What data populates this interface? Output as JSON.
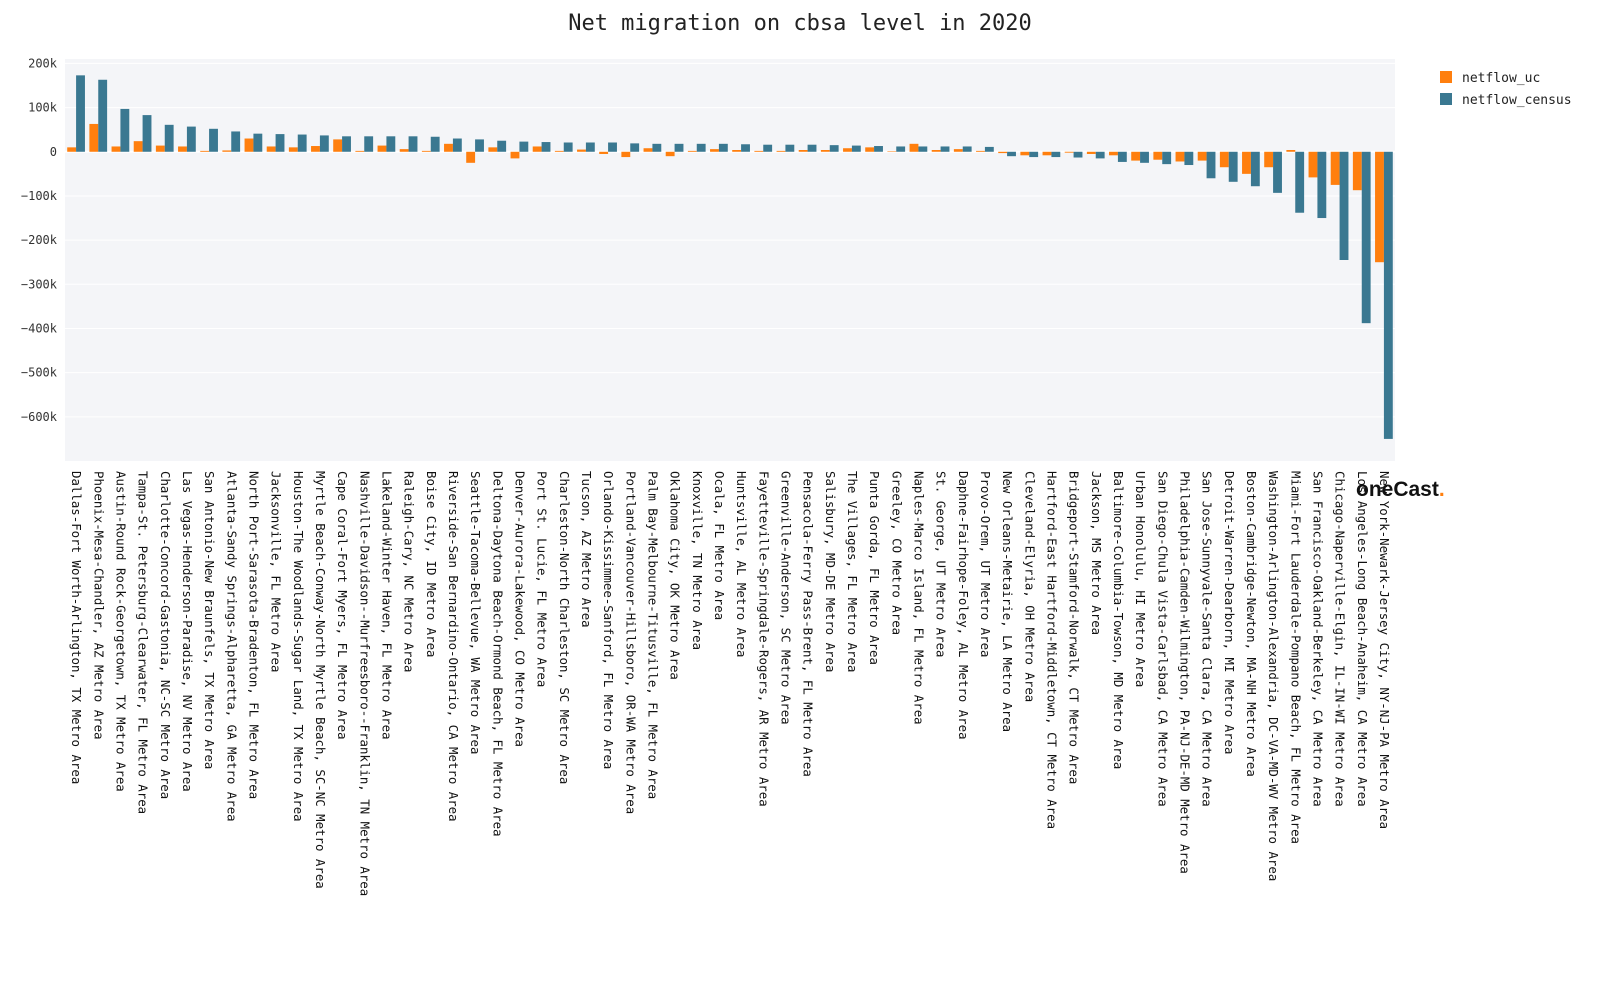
{
  "chart_data": {
    "type": "bar",
    "title": "Net migration on cbsa level in 2020",
    "xlabel": "",
    "ylabel": "",
    "ylim": [
      -700000,
      210000
    ],
    "yticks": [
      200000,
      100000,
      0,
      -100000,
      -200000,
      -300000,
      -400000,
      -500000,
      -600000
    ],
    "yticklabels": [
      "200k",
      "100k",
      "0",
      "−100k",
      "−200k",
      "−300k",
      "−400k",
      "−500k",
      "−600k"
    ],
    "grid": true,
    "legend_position": "top-right",
    "categories": [
      "Dallas-Fort Worth-Arlington, TX Metro Area",
      "Phoenix-Mesa-Chandler, AZ Metro Area",
      "Austin-Round Rock-Georgetown, TX Metro Area",
      "Tampa-St. Petersburg-Clearwater, FL Metro Area",
      "Charlotte-Concord-Gastonia, NC-SC Metro Area",
      "Las Vegas-Henderson-Paradise, NV Metro Area",
      "San Antonio-New Braunfels, TX Metro Area",
      "Atlanta-Sandy Springs-Alpharetta, GA Metro Area",
      "North Port-Sarasota-Bradenton, FL Metro Area",
      "Jacksonville, FL Metro Area",
      "Houston-The Woodlands-Sugar Land, TX Metro Area",
      "Myrtle Beach-Conway-North Myrtle Beach, SC-NC Metro Area",
      "Cape Coral-Fort Myers, FL Metro Area",
      "Nashville-Davidson--Murfreesboro--Franklin, TN Metro Area",
      "Lakeland-Winter Haven, FL Metro Area",
      "Raleigh-Cary, NC Metro Area",
      "Boise City, ID Metro Area",
      "Riverside-San Bernardino-Ontario, CA Metro Area",
      "Seattle-Tacoma-Bellevue, WA Metro Area",
      "Deltona-Daytona Beach-Ormond Beach, FL Metro Area",
      "Denver-Aurora-Lakewood, CO Metro Area",
      "Port St. Lucie, FL Metro Area",
      "Charleston-North Charleston, SC Metro Area",
      "Tucson, AZ Metro Area",
      "Orlando-Kissimmee-Sanford, FL Metro Area",
      "Portland-Vancouver-Hillsboro, OR-WA Metro Area",
      "Palm Bay-Melbourne-Titusville, FL Metro Area",
      "Oklahoma City, OK Metro Area",
      "Knoxville, TN Metro Area",
      "Ocala, FL Metro Area",
      "Huntsville, AL Metro Area",
      "Fayetteville-Springdale-Rogers, AR Metro Area",
      "Greenville-Anderson, SC Metro Area",
      "Pensacola-Ferry Pass-Brent, FL Metro Area",
      "Salisbury, MD-DE Metro Area",
      "The Villages, FL Metro Area",
      "Punta Gorda, FL Metro Area",
      "Greeley, CO Metro Area",
      "Naples-Marco Island, FL Metro Area",
      "St. George, UT Metro Area",
      "Daphne-Fairhope-Foley, AL Metro Area",
      "Provo-Orem, UT Metro Area",
      "New Orleans-Metairie, LA Metro Area",
      "Cleveland-Elyria, OH Metro Area",
      "Hartford-East Hartford-Middletown, CT Metro Area",
      "Bridgeport-Stamford-Norwalk, CT Metro Area",
      "Jackson, MS Metro Area",
      "Baltimore-Columbia-Towson, MD Metro Area",
      "Urban Honolulu, HI Metro Area",
      "San Diego-Chula Vista-Carlsbad, CA Metro Area",
      "Philadelphia-Camden-Wilmington, PA-NJ-DE-MD Metro Area",
      "San Jose-Sunnyvale-Santa Clara, CA Metro Area",
      "Detroit-Warren-Dearborn, MI Metro Area",
      "Boston-Cambridge-Newton, MA-NH Metro Area",
      "Washington-Arlington-Alexandria, DC-VA-MD-WV Metro Area",
      "Miami-Fort Lauderdale-Pompano Beach, FL Metro Area",
      "San Francisco-Oakland-Berkeley, CA Metro Area",
      "Chicago-Naperville-Elgin, IL-IN-WI Metro Area",
      "Los Angeles-Long Beach-Anaheim, CA Metro Area",
      "New York-Newark-Jersey City, NY-NJ-PA Metro Area"
    ],
    "series": [
      {
        "name": "netflow_uc",
        "color": "#ff7f0e",
        "values": [
          10000,
          63000,
          12000,
          24000,
          14000,
          12000,
          2000,
          3000,
          30000,
          12000,
          10000,
          13000,
          28000,
          2000,
          14000,
          6000,
          2000,
          18000,
          -25000,
          10000,
          -15000,
          12000,
          2000,
          5000,
          -5000,
          -12000,
          8000,
          -10000,
          2000,
          6000,
          4000,
          2000,
          2000,
          4000,
          4000,
          8000,
          10000,
          1000,
          18000,
          4000,
          6000,
          2000,
          -3000,
          -8000,
          -8000,
          -2000,
          -5000,
          -8000,
          -20000,
          -18000,
          -22000,
          -20000,
          -35000,
          -50000,
          -35000,
          4000,
          -58000,
          -75000,
          -87000,
          -250000
        ]
      },
      {
        "name": "netflow_census",
        "color": "#3a7891",
        "values": [
          173000,
          163000,
          97000,
          83000,
          61000,
          57000,
          52000,
          46000,
          41000,
          40000,
          39000,
          37000,
          35000,
          35000,
          35000,
          35000,
          34000,
          30000,
          28000,
          25000,
          23000,
          22000,
          21000,
          21000,
          21000,
          19000,
          18000,
          18000,
          18000,
          18000,
          17000,
          16000,
          16000,
          16000,
          15000,
          14000,
          13000,
          12000,
          12000,
          12000,
          12000,
          11000,
          -10000,
          -12000,
          -12000,
          -13000,
          -15000,
          -23000,
          -25000,
          -28000,
          -30000,
          -60000,
          -68000,
          -78000,
          -93000,
          -138000,
          -150000,
          -245000,
          -388000,
          -650000
        ]
      }
    ]
  },
  "legend": {
    "items": [
      {
        "label": "netflow_uc",
        "color": "#ff7f0e"
      },
      {
        "label": "netflow_census",
        "color": "#3a7891"
      }
    ]
  },
  "logo": {
    "text": "oneCast",
    "dot": "."
  },
  "colors": {
    "plot_bg": "#f4f5f8",
    "grid": "#ffffff",
    "zero_line": "#ffffff"
  }
}
